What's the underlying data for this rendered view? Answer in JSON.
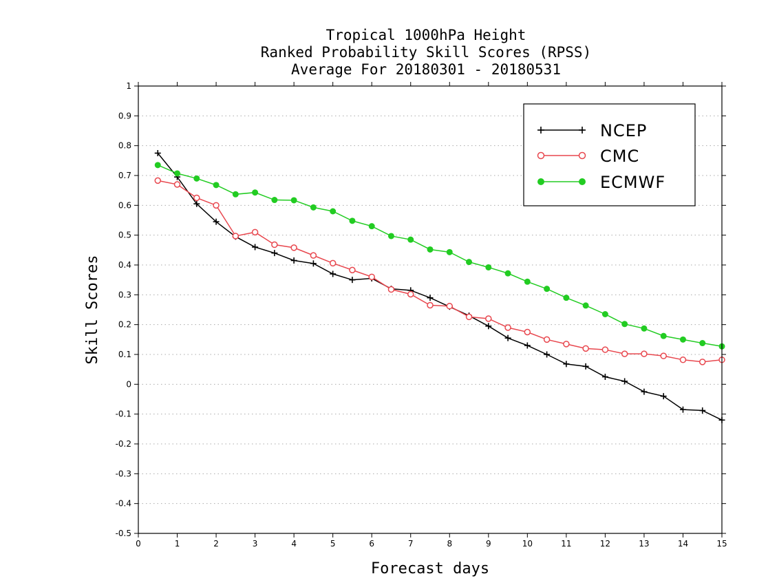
{
  "chart_data": {
    "type": "line",
    "title": [
      "Tropical 1000hPa Height",
      "Ranked Probability Skill Scores (RPSS)",
      "Average For 20180301 - 20180531"
    ],
    "xlabel": "Forecast days",
    "ylabel": "Skill Scores",
    "xlim": [
      0,
      15
    ],
    "ylim": [
      -0.5,
      1
    ],
    "xticks": [
      0,
      1,
      2,
      3,
      4,
      5,
      6,
      7,
      8,
      9,
      10,
      11,
      12,
      13,
      14,
      15
    ],
    "yticks": [
      "-0.5",
      "-0.4",
      "-0.3",
      "-0.2",
      "-0.1",
      "0",
      "0.1",
      "0.2",
      "0.3",
      "0.4",
      "0.5",
      "0.6",
      "0.7",
      "0.8",
      "0.9",
      "1"
    ],
    "grid": "horizontal dotted",
    "legend_position": "top-right",
    "x": [
      0.5,
      1,
      1.5,
      2,
      2.5,
      3,
      3.5,
      4,
      4.5,
      5,
      5.5,
      6,
      6.5,
      7,
      7.5,
      8,
      8.5,
      9,
      9.5,
      10,
      10.5,
      11,
      11.5,
      12,
      12.5,
      13,
      13.5,
      14,
      14.5,
      15
    ],
    "series": [
      {
        "name": "NCEP",
        "color": "#000000",
        "marker": "plus",
        "values": [
          0.775,
          0.695,
          0.605,
          0.545,
          0.495,
          0.46,
          0.44,
          0.415,
          0.405,
          0.37,
          0.35,
          0.355,
          0.32,
          0.315,
          0.29,
          0.26,
          0.23,
          0.195,
          0.155,
          0.13,
          0.1,
          0.068,
          0.06,
          0.025,
          0.01,
          -0.025,
          -0.04,
          -0.085,
          -0.088,
          -0.12
        ]
      },
      {
        "name": "CMC",
        "color": "#e8474e",
        "marker": "open-circle",
        "values": [
          0.683,
          0.67,
          0.625,
          0.6,
          0.497,
          0.51,
          0.468,
          0.458,
          0.432,
          0.406,
          0.383,
          0.36,
          0.318,
          0.302,
          0.265,
          0.262,
          0.226,
          0.22,
          0.19,
          0.175,
          0.15,
          0.135,
          0.12,
          0.116,
          0.102,
          0.102,
          0.095,
          0.082,
          0.075,
          0.082
        ]
      },
      {
        "name": "ECMWF",
        "color": "#22cc22",
        "marker": "filled-circle",
        "values": [
          0.735,
          0.707,
          0.69,
          0.668,
          0.637,
          0.643,
          0.618,
          0.617,
          0.593,
          0.58,
          0.548,
          0.53,
          0.497,
          0.485,
          0.452,
          0.443,
          0.41,
          0.392,
          0.372,
          0.344,
          0.32,
          0.29,
          0.264,
          0.235,
          0.202,
          0.187,
          0.162,
          0.15,
          0.138,
          0.127
        ]
      }
    ]
  }
}
